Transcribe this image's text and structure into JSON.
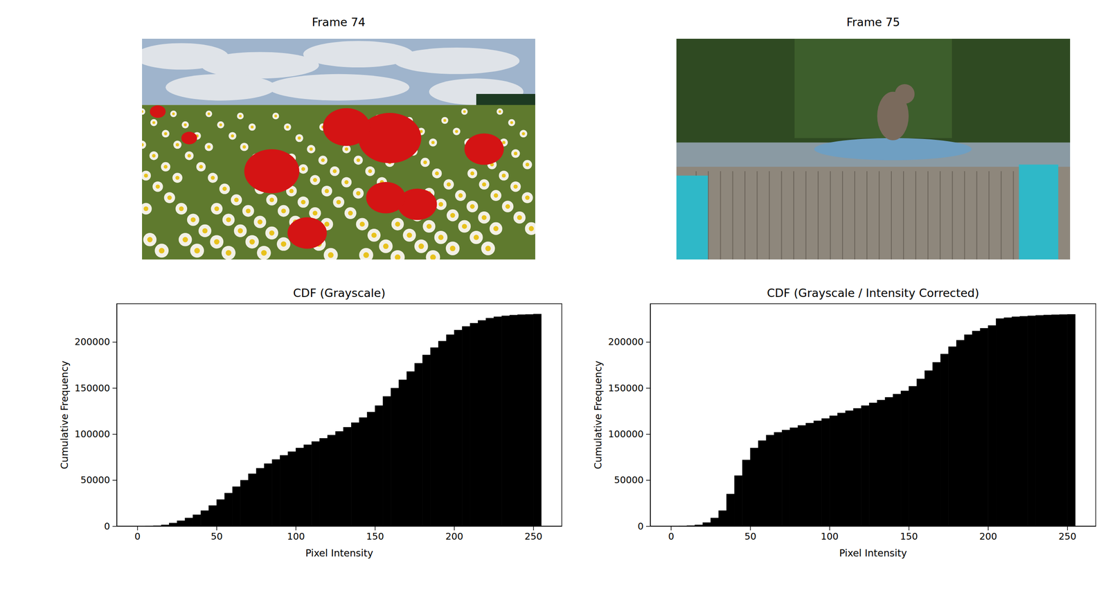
{
  "images": [
    {
      "title": "Frame 74"
    },
    {
      "title": "Frame 75"
    }
  ],
  "chart_data": [
    {
      "type": "histogram",
      "title": "CDF (Grayscale)",
      "x_label": "Pixel Intensity",
      "y_label": "Cumulative Frequency",
      "color": "#000000",
      "bins": [
        0,
        5,
        10,
        15,
        20,
        25,
        30,
        35,
        40,
        45,
        50,
        55,
        60,
        65,
        70,
        75,
        80,
        85,
        90,
        95,
        100,
        105,
        110,
        115,
        120,
        125,
        130,
        135,
        140,
        145,
        150,
        155,
        160,
        165,
        170,
        175,
        180,
        185,
        190,
        195,
        200,
        205,
        210,
        215,
        220,
        225,
        230,
        235,
        240,
        245,
        250,
        255
      ],
      "values": [
        0,
        200,
        600,
        1500,
        3500,
        6000,
        9000,
        12500,
        17000,
        22500,
        29000,
        36000,
        43000,
        50000,
        57000,
        63000,
        68000,
        72500,
        77000,
        81000,
        85000,
        88500,
        92000,
        95500,
        99000,
        103000,
        107500,
        112500,
        118000,
        124000,
        131000,
        141000,
        150000,
        159000,
        168000,
        177000,
        186000,
        194000,
        201000,
        208000,
        213000,
        217000,
        220500,
        223500,
        226000,
        227500,
        228500,
        229300,
        229800,
        230000,
        230400
      ],
      "xlim": [
        -13,
        268
      ],
      "ylim": [
        0,
        241500
      ],
      "xticks": [
        0,
        50,
        100,
        150,
        200,
        250
      ],
      "yticks": [
        0,
        50000,
        100000,
        150000,
        200000
      ]
    },
    {
      "type": "histogram",
      "title": "CDF (Grayscale / Intensity Corrected)",
      "x_label": "Pixel Intensity",
      "y_label": "Cumulative Frequency",
      "color": "#000000",
      "bins": [
        0,
        5,
        10,
        15,
        20,
        25,
        30,
        35,
        40,
        45,
        50,
        55,
        60,
        65,
        70,
        75,
        80,
        85,
        90,
        95,
        100,
        105,
        110,
        115,
        120,
        125,
        130,
        135,
        140,
        145,
        150,
        155,
        160,
        165,
        170,
        175,
        180,
        185,
        190,
        195,
        200,
        205,
        210,
        215,
        220,
        225,
        230,
        235,
        240,
        245,
        250,
        255
      ],
      "values": [
        100,
        300,
        700,
        1500,
        4000,
        9000,
        17000,
        35000,
        55000,
        72000,
        85000,
        93000,
        99000,
        102000,
        104500,
        107000,
        109500,
        112000,
        114500,
        117000,
        120000,
        123000,
        125500,
        128000,
        131000,
        134000,
        137000,
        140000,
        143500,
        147000,
        152000,
        160000,
        169000,
        178000,
        187000,
        195000,
        202000,
        208000,
        212000,
        215000,
        218000,
        225500,
        226500,
        227500,
        228000,
        228500,
        229000,
        229400,
        229700,
        229900,
        230100
      ],
      "xlim": [
        -13,
        268
      ],
      "ylim": [
        0,
        241500
      ],
      "xticks": [
        0,
        50,
        100,
        150,
        200,
        250
      ],
      "yticks": [
        0,
        50000,
        100000,
        150000,
        200000
      ]
    }
  ]
}
